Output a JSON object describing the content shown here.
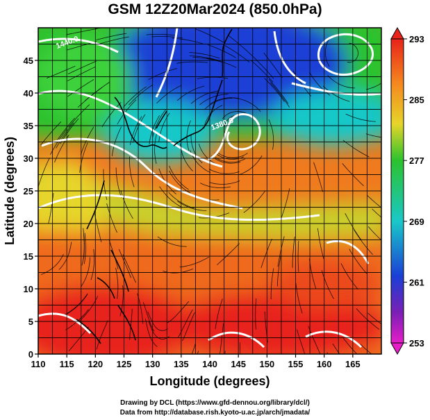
{
  "title": "GSM 12Z20Mar2024 (850.0hPa)",
  "map": {
    "xaxis": {
      "label": "Longitude (degrees)",
      "range": [
        110,
        170
      ],
      "ticks": [
        110,
        115,
        120,
        125,
        130,
        135,
        140,
        145,
        150,
        155,
        160,
        165
      ]
    },
    "yaxis": {
      "label": "Latitude  (degrees)",
      "range": [
        0,
        50
      ],
      "ticks": [
        0,
        5,
        10,
        15,
        20,
        25,
        30,
        35,
        40,
        45
      ]
    },
    "contour_labels": [
      {
        "text": "1440.0",
        "lon": 113.3,
        "lat": 46.8
      },
      {
        "text": "1380.0",
        "lon": 140.4,
        "lat": 34.3
      }
    ],
    "colorbar": {
      "ticks": [
        293,
        285,
        277,
        269,
        261,
        253
      ],
      "range": [
        253,
        293
      ]
    },
    "colors": {
      "warm": "#e8231a",
      "orange": "#f58a1f",
      "yellow": "#e6d52a",
      "green": "#2cc22e",
      "cyan": "#19c8c8",
      "blue": "#1a3fd6",
      "purple": "#7a1fb5",
      "magenta": "#e51ec8"
    }
  },
  "credits": {
    "line1": "Drawing by DCL (https://www.gfd-dennou.org/library/dcl/)",
    "line2": "Data from http://database.rish.kyoto-u.ac.jp/arch/jmadata/"
  }
}
